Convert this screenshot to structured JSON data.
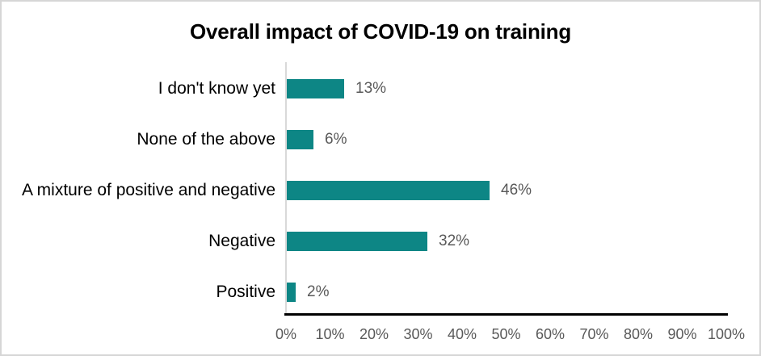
{
  "chart_data": {
    "type": "bar",
    "orientation": "horizontal",
    "title": "Overall impact of COVID-19 on training",
    "categories": [
      "I don't know yet",
      "None of the above",
      "A mixture of positive and negative",
      "Negative",
      "Positive"
    ],
    "values": [
      13,
      6,
      46,
      32,
      2
    ],
    "value_labels": [
      "13%",
      "6%",
      "46%",
      "32%",
      "2%"
    ],
    "x_ticks": [
      "0%",
      "10%",
      "20%",
      "30%",
      "40%",
      "50%",
      "60%",
      "70%",
      "80%",
      "90%",
      "100%"
    ],
    "xlim": [
      0,
      100
    ],
    "xlabel": "",
    "ylabel": "",
    "grid": false,
    "legend": "none",
    "colors": {
      "bar": "#0d8685",
      "value_label": "#595959",
      "tick_label": "#595959",
      "category_label": "#000000",
      "axis_line": "#000000",
      "baseline": "#d9d9d9",
      "frame_border": "#d6d6d6",
      "background": "#ffffff"
    }
  }
}
